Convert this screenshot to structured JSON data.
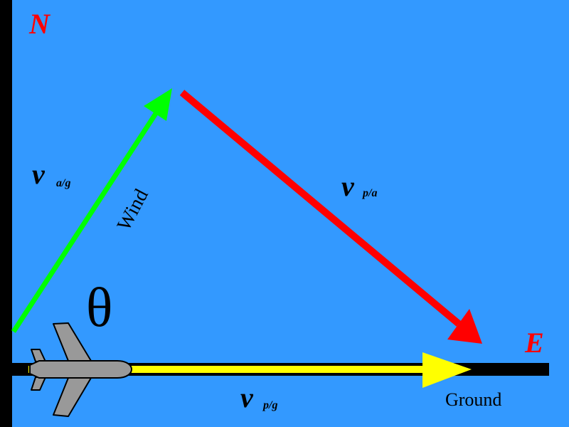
{
  "colors": {
    "background": "#3399ff",
    "axis": "#000000",
    "wind_vector": "#00ff00",
    "plane_air_vector": "#ff0000",
    "ground_vector": "#ffff00",
    "compass_label": "#ff0000",
    "plane": "#999999"
  },
  "compass": {
    "north": "N",
    "east": "E"
  },
  "vectors": {
    "wind": {
      "symbol": "v",
      "subscript": "a/g",
      "caption": "Wind"
    },
    "plane_air": {
      "symbol": "v",
      "subscript": "p/a"
    },
    "plane_ground": {
      "symbol": "v",
      "subscript": "p/g",
      "caption": "Ground"
    }
  },
  "angle_label": "θ",
  "icons": {
    "plane": "airplane-icon"
  }
}
